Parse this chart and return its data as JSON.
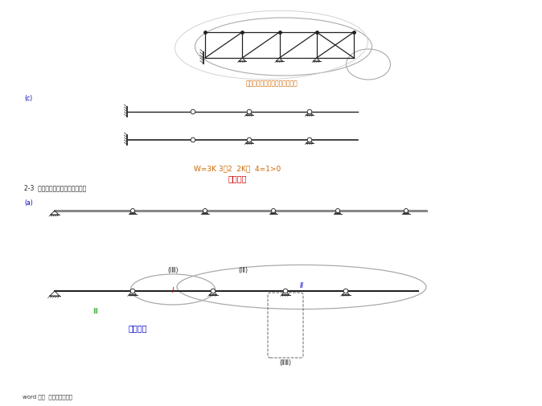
{
  "bg_color": "#ffffff",
  "caption1": "有一个多余约束的几何不变体系",
  "caption2_line1": "W=3K 3＋2  2K－  4=1>0",
  "caption2_line2": "可变体系",
  "caption3": "2-3  试分析图示体系的几何构造。",
  "label_c": "(c)",
  "label_a": "(a)",
  "cap_I_III": "(ⅠⅢ)",
  "cap_I_II": "(ⅠⅡ)",
  "cap_I": "Ⅰ",
  "cap_II": "Ⅱ",
  "cap_III": "Ⅲ",
  "cap_geom": "几何不变",
  "cap_II_III": "(ⅡⅢ)",
  "footer": "word 文件  可自由复制编辑"
}
